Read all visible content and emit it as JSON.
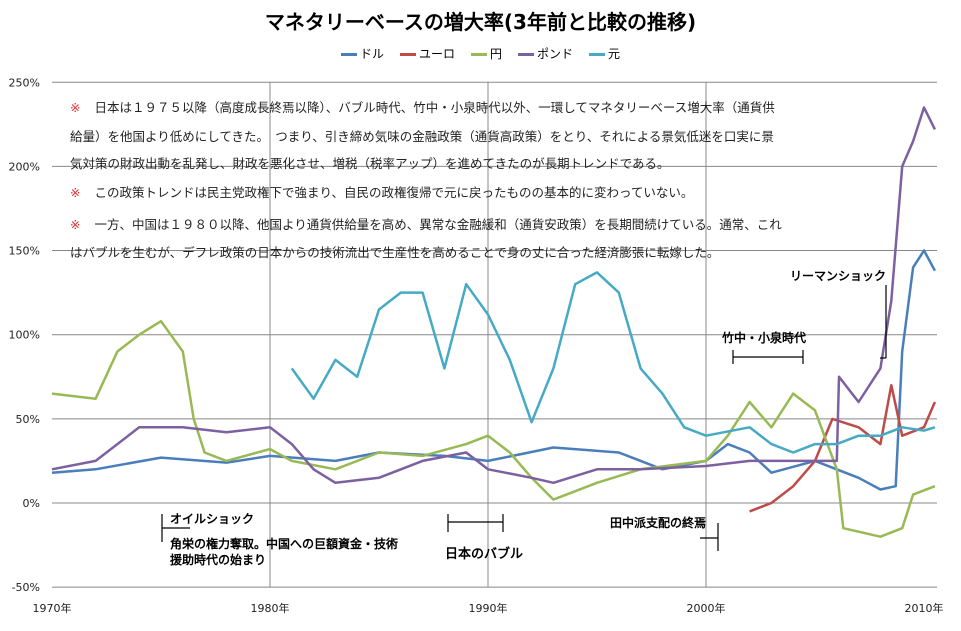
{
  "chart_data": {
    "type": "line",
    "title": "マネタリーベースの増大率(3年前と比較の推移)",
    "legend_position": "top",
    "grid": true,
    "xlim": [
      1970,
      2010.5
    ],
    "ylim": [
      -50,
      250
    ],
    "y_ticks": [
      "-50%",
      "0%",
      "50%",
      "100%",
      "150%",
      "200%",
      "250%"
    ],
    "x_ticks": [
      "1970年",
      "1980年",
      "1990年",
      "2000年",
      "2010年"
    ],
    "series": [
      {
        "name": "ドル",
        "color": "#4a7ebb",
        "points": [
          [
            1970,
            18
          ],
          [
            1972,
            20
          ],
          [
            1975,
            27
          ],
          [
            1978,
            24
          ],
          [
            1980,
            28
          ],
          [
            1983,
            25
          ],
          [
            1985,
            30
          ],
          [
            1988,
            28
          ],
          [
            1990,
            25
          ],
          [
            1993,
            33
          ],
          [
            1996,
            30
          ],
          [
            1998,
            20
          ],
          [
            2000,
            25
          ],
          [
            2001,
            35
          ],
          [
            2002,
            30
          ],
          [
            2003,
            18
          ],
          [
            2005,
            25
          ],
          [
            2007,
            15
          ],
          [
            2008,
            8
          ],
          [
            2008.7,
            10
          ],
          [
            2009,
            90
          ],
          [
            2009.5,
            140
          ],
          [
            2010,
            150
          ],
          [
            2010.5,
            138
          ]
        ]
      },
      {
        "name": "ユーロ",
        "color": "#be4b48",
        "points": [
          [
            2002,
            -5
          ],
          [
            2003,
            0
          ],
          [
            2004,
            10
          ],
          [
            2005,
            25
          ],
          [
            2005.8,
            50
          ],
          [
            2007,
            45
          ],
          [
            2008,
            35
          ],
          [
            2008.5,
            70
          ],
          [
            2009,
            40
          ],
          [
            2010,
            45
          ],
          [
            2010.5,
            60
          ]
        ]
      },
      {
        "name": "円",
        "color": "#98b954",
        "points": [
          [
            1970,
            65
          ],
          [
            1972,
            62
          ],
          [
            1973,
            90
          ],
          [
            1974,
            100
          ],
          [
            1975,
            108
          ],
          [
            1976,
            90
          ],
          [
            1976.5,
            50
          ],
          [
            1977,
            30
          ],
          [
            1978,
            25
          ],
          [
            1980,
            32
          ],
          [
            1981,
            25
          ],
          [
            1983,
            20
          ],
          [
            1985,
            30
          ],
          [
            1987,
            28
          ],
          [
            1989,
            35
          ],
          [
            1990,
            40
          ],
          [
            1991,
            30
          ],
          [
            1992,
            15
          ],
          [
            1993,
            2
          ],
          [
            1995,
            12
          ],
          [
            1997,
            20
          ],
          [
            2000,
            25
          ],
          [
            2001,
            40
          ],
          [
            2002,
            60
          ],
          [
            2003,
            45
          ],
          [
            2004,
            65
          ],
          [
            2005,
            55
          ],
          [
            2006,
            20
          ],
          [
            2006.3,
            -15
          ],
          [
            2008,
            -20
          ],
          [
            2009,
            -15
          ],
          [
            2009.5,
            5
          ],
          [
            2010.5,
            10
          ]
        ]
      },
      {
        "name": "ポンド",
        "color": "#7d60a0",
        "points": [
          [
            1970,
            20
          ],
          [
            1972,
            25
          ],
          [
            1974,
            45
          ],
          [
            1976,
            45
          ],
          [
            1978,
            42
          ],
          [
            1980,
            45
          ],
          [
            1981,
            35
          ],
          [
            1982,
            20
          ],
          [
            1983,
            12
          ],
          [
            1985,
            15
          ],
          [
            1987,
            25
          ],
          [
            1989,
            30
          ],
          [
            1990,
            20
          ],
          [
            1992,
            15
          ],
          [
            1993,
            12
          ],
          [
            1995,
            20
          ],
          [
            1997,
            20
          ],
          [
            2000,
            22
          ],
          [
            2002,
            25
          ],
          [
            2004,
            25
          ],
          [
            2006,
            25
          ],
          [
            2006.1,
            75
          ],
          [
            2007,
            60
          ],
          [
            2008,
            80
          ],
          [
            2008.5,
            120
          ],
          [
            2009,
            200
          ],
          [
            2009.5,
            215
          ],
          [
            2010,
            235
          ],
          [
            2010.5,
            222
          ]
        ]
      },
      {
        "name": "元",
        "color": "#46aac4",
        "points": [
          [
            1981,
            80
          ],
          [
            1982,
            62
          ],
          [
            1983,
            85
          ],
          [
            1984,
            75
          ],
          [
            1985,
            115
          ],
          [
            1986,
            125
          ],
          [
            1987,
            125
          ],
          [
            1988,
            80
          ],
          [
            1989,
            130
          ],
          [
            1990,
            112
          ],
          [
            1991,
            85
          ],
          [
            1992,
            48
          ],
          [
            1993,
            80
          ],
          [
            1994,
            130
          ],
          [
            1995,
            137
          ],
          [
            1996,
            125
          ],
          [
            1997,
            80
          ],
          [
            1998,
            65
          ],
          [
            1999,
            45
          ],
          [
            2000,
            40
          ],
          [
            2002,
            45
          ],
          [
            2003,
            35
          ],
          [
            2004,
            30
          ],
          [
            2005,
            35
          ],
          [
            2006,
            35
          ],
          [
            2007,
            40
          ],
          [
            2008,
            40
          ],
          [
            2009,
            45
          ],
          [
            2010,
            43
          ],
          [
            2010.5,
            45
          ]
        ]
      }
    ]
  },
  "notes": {
    "mark": "※",
    "n1a": "日本は１９７５以降（高度成長終焉以降）、バブル時代、竹中・小泉時代以外、一環してマネタリーベース増大率（通貨供",
    "n1b": "給量）を他国より低めにしてきた。　つまり、引き締め気味の金融政策（通貨高政策）をとり、それによる景気低迷を口実に景",
    "n1c": "気対策の財政出動を乱発し、財政を悪化させ、増税（税率アップ）を進めてきたのが長期トレンドである。",
    "n2": "この政策トレンドは民主党政権下で強まり、自民の政権復帰で元に戻ったものの基本的に変わっていない。",
    "n3a": "一方、中国は１９８０以降、他国より通貨供給量を高め、異常な金融緩和（通貨安政策）を長期間続けている。通常、これ",
    "n3b": "はバブルを生むが、デフレ政策の日本からの技術流出で生産性を高めることで身の丈に合った経済膨張に転嫁した。"
  },
  "annotations": {
    "lehman": "リーマンショック",
    "koizumi": "竹中・小泉時代",
    "oil": "オイルショック",
    "kakuei1": "角栄の権力奪取。中国への巨額資金・技術",
    "kakuei2": "援助時代の始まり",
    "bubble": "日本のバブル",
    "tanaka": "田中派支配の終焉"
  }
}
